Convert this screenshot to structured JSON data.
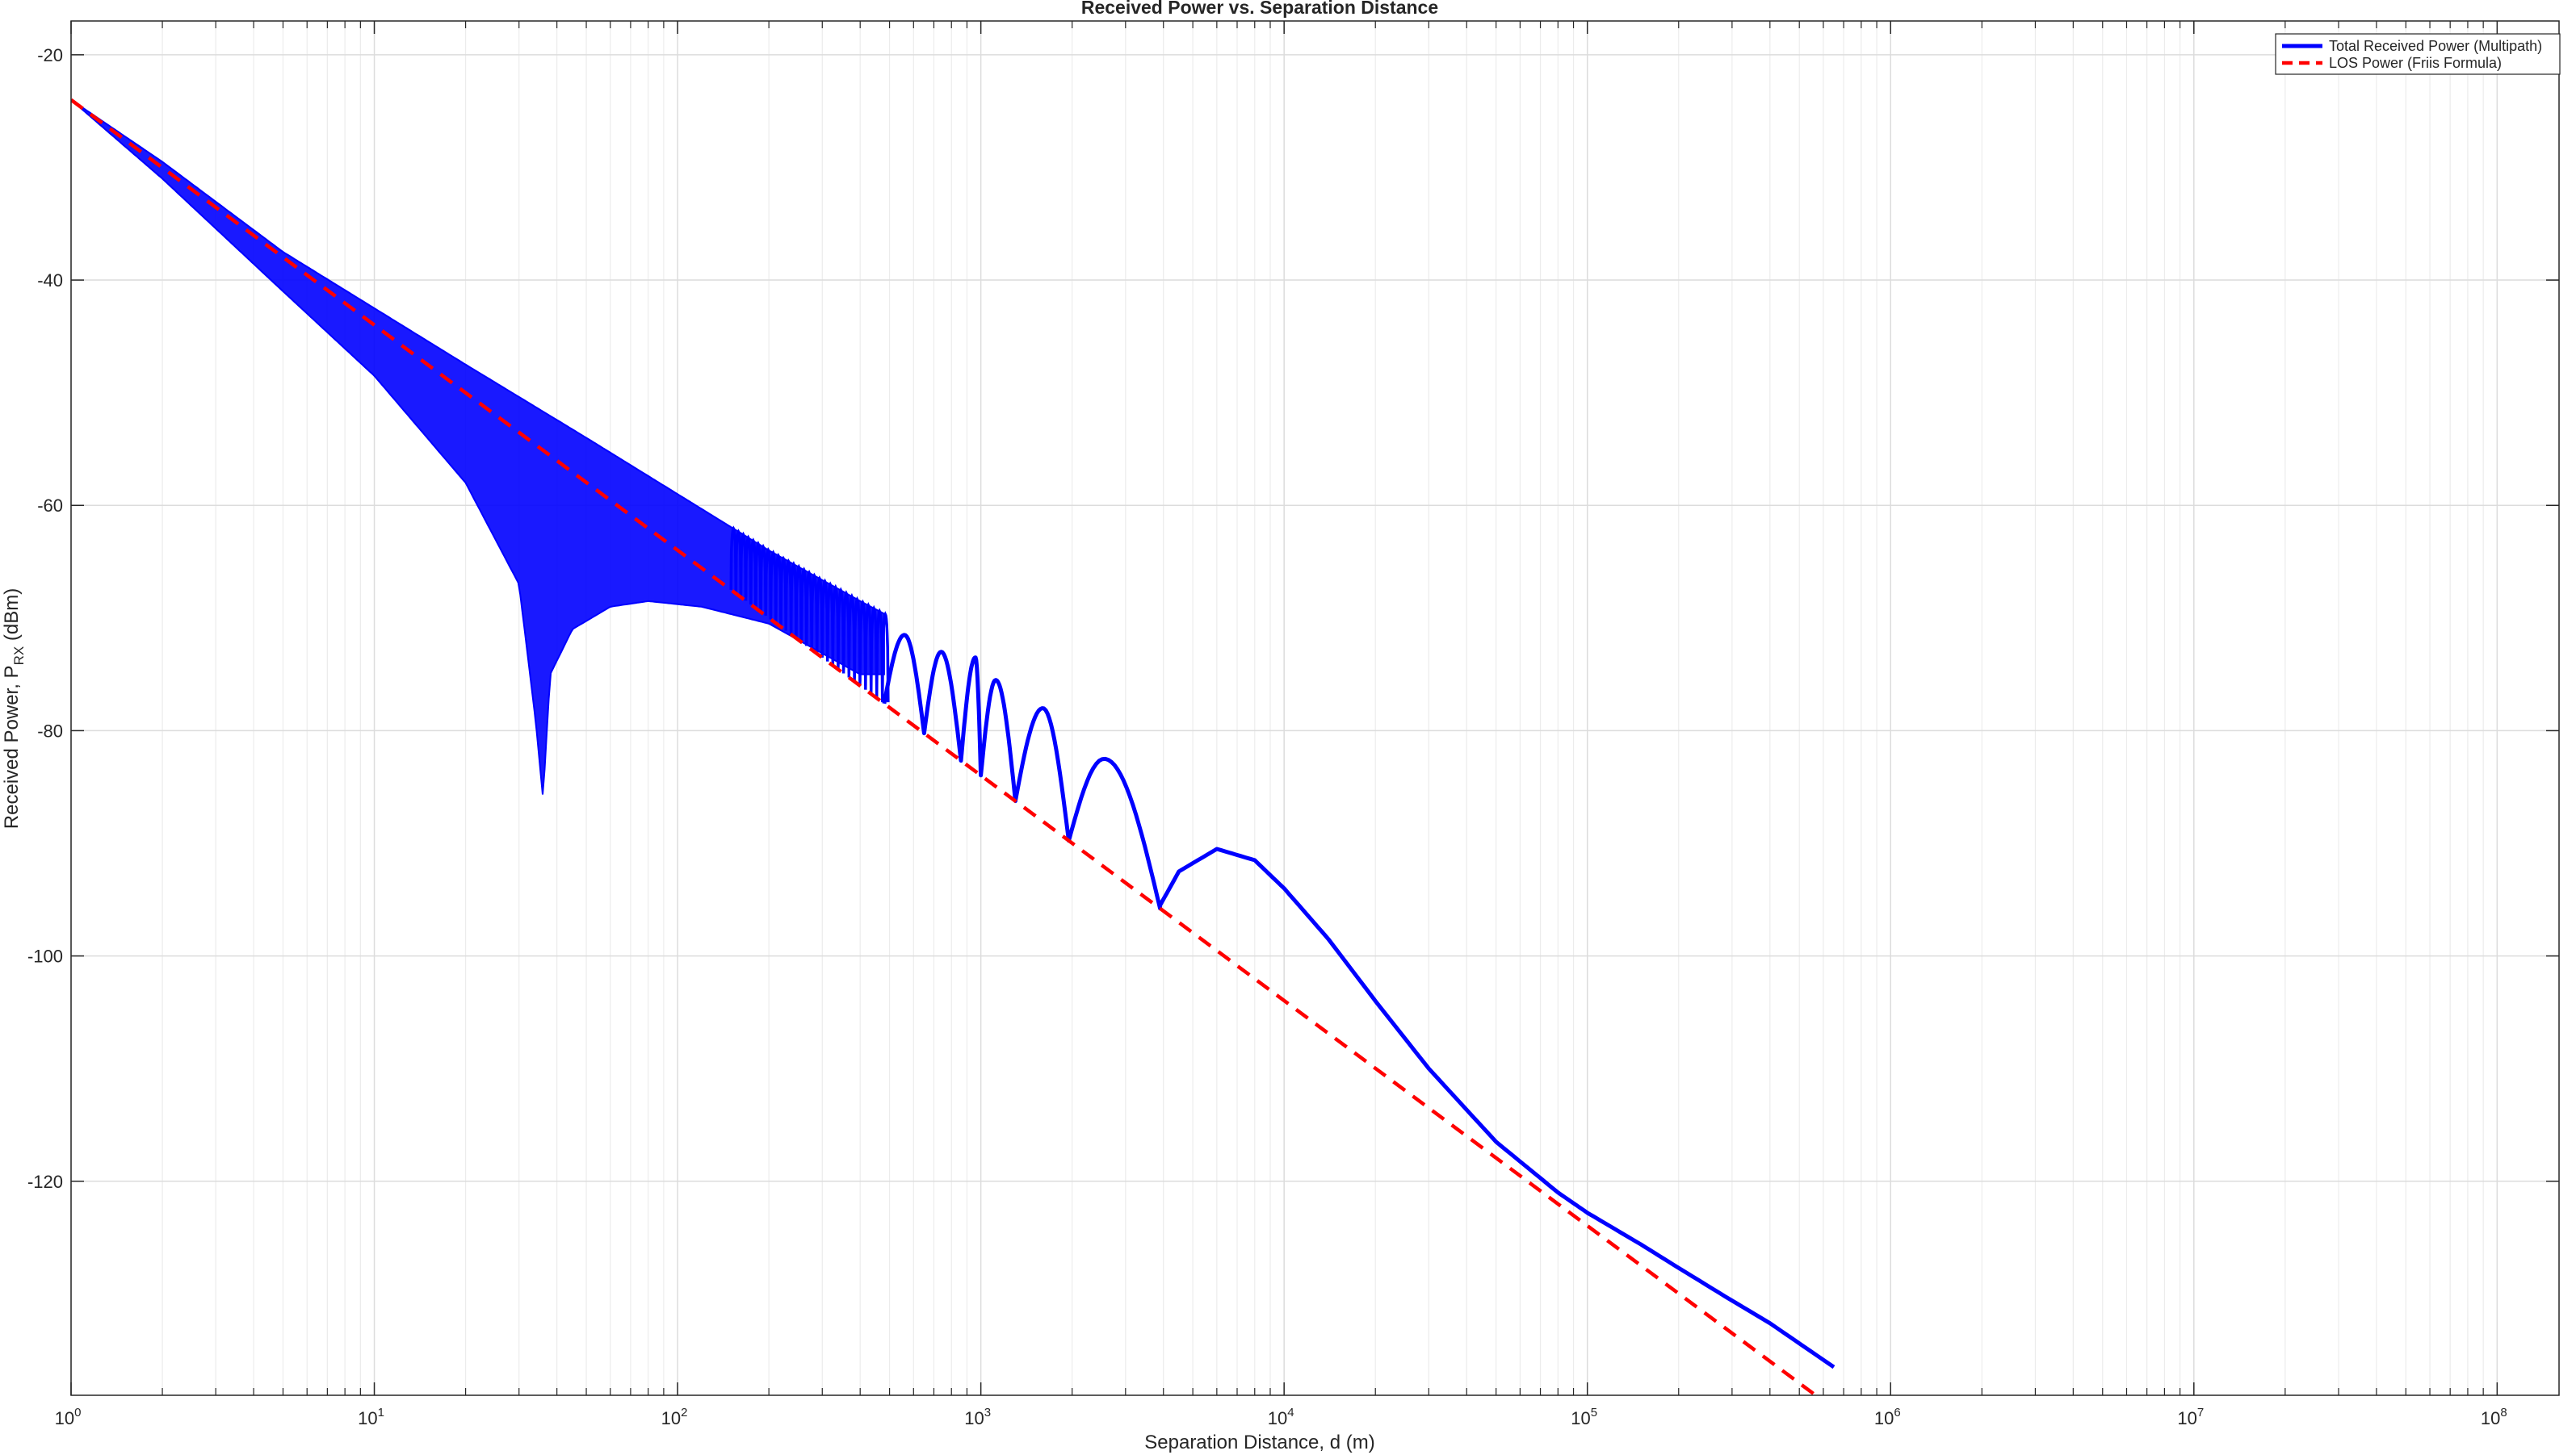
{
  "chart_data": {
    "type": "line",
    "title": "Received Power vs. Separation Distance",
    "xlabel": "Separation Distance, d (m)",
    "ylabel": "Received Power,  P",
    "ylabel_subscript": "RX",
    "ylabel_suffix": " (dBm)",
    "xscale": "log",
    "xlim": [
      1,
      160000000
    ],
    "ylim": [
      -139,
      -17
    ],
    "grid": true,
    "legend_position": "top-right",
    "x_ticks": [
      {
        "value": 1,
        "base": "10",
        "exp": "0"
      },
      {
        "value": 10,
        "base": "10",
        "exp": "1"
      },
      {
        "value": 100,
        "base": "10",
        "exp": "2"
      },
      {
        "value": 1000,
        "base": "10",
        "exp": "3"
      },
      {
        "value": 10000,
        "base": "10",
        "exp": "4"
      },
      {
        "value": 100000,
        "base": "10",
        "exp": "5"
      },
      {
        "value": 1000000,
        "base": "10",
        "exp": "6"
      },
      {
        "value": 10000000,
        "base": "10",
        "exp": "7"
      },
      {
        "value": 100000000,
        "base": "10",
        "exp": "8"
      }
    ],
    "y_ticks": [
      {
        "value": -20,
        "label": "-20"
      },
      {
        "value": -40,
        "label": "-40"
      },
      {
        "value": -60,
        "label": "-60"
      },
      {
        "value": -80,
        "label": "-80"
      },
      {
        "value": -100,
        "label": "-100"
      },
      {
        "value": -120,
        "label": "-120"
      }
    ],
    "series": [
      {
        "name": "Total Received Power (Multipath)",
        "color": "#0000ff",
        "style": "solid",
        "model": "two-ray ground reflection; fading envelope approximated from the figure",
        "upper_envelope": {
          "x": [
            1,
            2,
            5,
            10,
            20,
            50,
            100,
            200,
            400,
            600,
            900,
            1200
          ],
          "y": [
            -24,
            -29.5,
            -37.5,
            -42.5,
            -47.5,
            -54,
            -59,
            -64,
            -68.5,
            -71,
            -74.5,
            -75
          ]
        },
        "lower_envelope": {
          "x": [
            1,
            2,
            5,
            10,
            20,
            30,
            34,
            36,
            38,
            45,
            60,
            80,
            120,
            200,
            400
          ],
          "y": [
            -24,
            -31,
            -41,
            -48.5,
            -58,
            -67,
            -79,
            -86,
            -75,
            -71,
            -69,
            -68.5,
            -69,
            -70.5,
            -75
          ]
        },
        "lobes": [
          {
            "x_start": 480,
            "x_peak": 560,
            "x_end": 650,
            "y_peak": -71.5
          },
          {
            "x_start": 650,
            "x_peak": 740,
            "x_end": 860,
            "y_peak": -73
          },
          {
            "x_start": 860,
            "x_peak": 960,
            "x_end": 1000,
            "y_peak": -73.5
          },
          {
            "x_start": 1000,
            "x_peak": 1120,
            "x_end": 1300,
            "y_peak": -75.5
          },
          {
            "x_start": 1300,
            "x_peak": 1600,
            "x_end": 1950,
            "y_peak": -78
          },
          {
            "x_start": 1950,
            "x_peak": 2550,
            "x_end": 3900,
            "y_peak": -82.5
          }
        ],
        "tail": {
          "x": [
            3900,
            4500,
            6000,
            8000,
            10000,
            14000,
            20000,
            30000,
            50000,
            80000,
            100000,
            150000,
            200000,
            300000,
            400000,
            650000
          ],
          "y": [
            -95.5,
            -92.5,
            -90.5,
            -91.5,
            -94,
            -98.5,
            -104,
            -110,
            -116.5,
            -121,
            -122.8,
            -125.6,
            -127.7,
            -130.6,
            -132.6,
            -136.5
          ]
        }
      },
      {
        "name": "LOS Power (Friis Formula)",
        "color": "#ff0000",
        "style": "dashed",
        "x": [
          1,
          650000
        ],
        "y": [
          -24,
          -140.2
        ]
      }
    ]
  }
}
